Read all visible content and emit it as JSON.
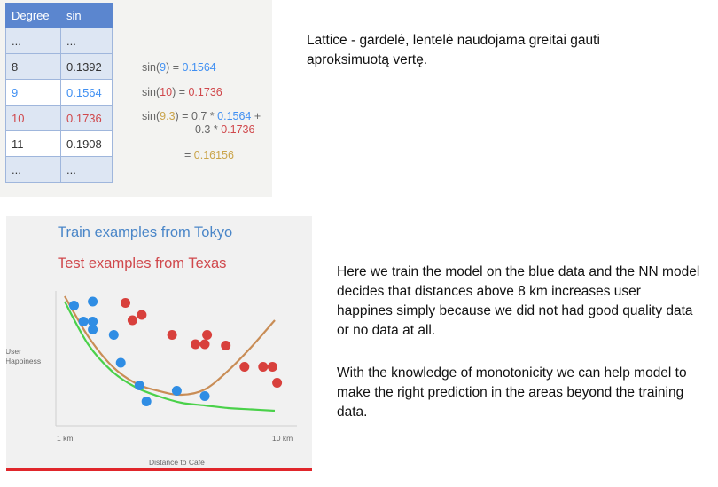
{
  "table": {
    "headers": [
      "Degree",
      "sin"
    ],
    "rows": [
      [
        "...",
        "..."
      ],
      [
        "8",
        "0.1392"
      ],
      [
        "9",
        "0.1564"
      ],
      [
        "10",
        "0.1736"
      ],
      [
        "11",
        "0.1908"
      ],
      [
        "...",
        "..."
      ]
    ]
  },
  "formulas": {
    "f1_prefix": "sin(",
    "f1_arg": "9",
    "f1_mid": ") = ",
    "f1_val": "0.1564",
    "f2_prefix": "sin(",
    "f2_arg": "10",
    "f2_mid": ") = ",
    "f2_val": "0.1736",
    "f3_prefix": "sin(",
    "f3_arg": "9.3",
    "f3_mid": ") = 0.7 * ",
    "f3_val1": "0.1564",
    "f3_plus": " +",
    "f3_line2_pre": "0.3 * ",
    "f3_val2": "0.1736",
    "f4_pre": "= ",
    "f4_val": "0.16156"
  },
  "notes": {
    "lattice": "Lattice - gardelė, lentelė naudojama greitai gauti aproksimuotą vertę.",
    "para1": "Here we train the model on the blue data and the NN model decides that distances above 8 km increases user happines simply because we did not had good quality data or no data at all.",
    "para2": "With the knowledge of monotonicity we can help model to make the right prediction in the areas beyond the training data."
  },
  "chart_data": {
    "type": "scatter",
    "legend": [
      "Train examples from Tokyo",
      "Test examples from Texas"
    ],
    "xlabel": "Distance to Cafe",
    "ylabel": "User Happiness",
    "x_tick_labels": [
      "1 km",
      "10 km"
    ],
    "xlim": [
      1,
      10
    ],
    "ylim": [
      0,
      10
    ],
    "series": [
      {
        "name": "Train examples from Tokyo",
        "color": "#2f8de4",
        "points": [
          [
            1.4,
            8.3
          ],
          [
            2.2,
            8.6
          ],
          [
            1.8,
            7.1
          ],
          [
            2.2,
            7.1
          ],
          [
            2.2,
            6.5
          ],
          [
            3.1,
            6.1
          ],
          [
            3.4,
            4.0
          ],
          [
            4.2,
            2.3
          ],
          [
            4.5,
            1.1
          ],
          [
            5.8,
            1.9
          ],
          [
            7.0,
            1.5
          ]
        ]
      },
      {
        "name": "Test examples from Texas",
        "color": "#d8403c",
        "points": [
          [
            3.6,
            8.5
          ],
          [
            3.9,
            7.2
          ],
          [
            4.3,
            7.6
          ],
          [
            5.6,
            6.1
          ],
          [
            6.6,
            5.4
          ],
          [
            7.1,
            6.1
          ],
          [
            7.0,
            5.4
          ],
          [
            7.9,
            5.3
          ],
          [
            8.7,
            3.7
          ],
          [
            9.5,
            3.7
          ],
          [
            9.9,
            3.7
          ],
          [
            10.1,
            2.5
          ]
        ]
      }
    ],
    "curves": [
      {
        "name": "nn_fit",
        "color": "#c98d56",
        "points": [
          [
            1.0,
            9.0
          ],
          [
            2.0,
            6.0
          ],
          [
            3.0,
            3.8
          ],
          [
            4.0,
            2.5
          ],
          [
            5.0,
            1.9
          ],
          [
            6.0,
            1.6
          ],
          [
            7.0,
            2.0
          ],
          [
            8.0,
            3.4
          ],
          [
            9.0,
            5.2
          ],
          [
            10.0,
            7.2
          ]
        ]
      },
      {
        "name": "monotonic_fit",
        "color": "#4ad14a",
        "points": [
          [
            1.0,
            8.6
          ],
          [
            2.0,
            5.4
          ],
          [
            3.0,
            3.4
          ],
          [
            4.0,
            2.2
          ],
          [
            5.0,
            1.5
          ],
          [
            6.0,
            1.0
          ],
          [
            7.0,
            0.8
          ],
          [
            8.0,
            0.6
          ],
          [
            9.0,
            0.5
          ],
          [
            10.0,
            0.4
          ]
        ]
      }
    ]
  }
}
